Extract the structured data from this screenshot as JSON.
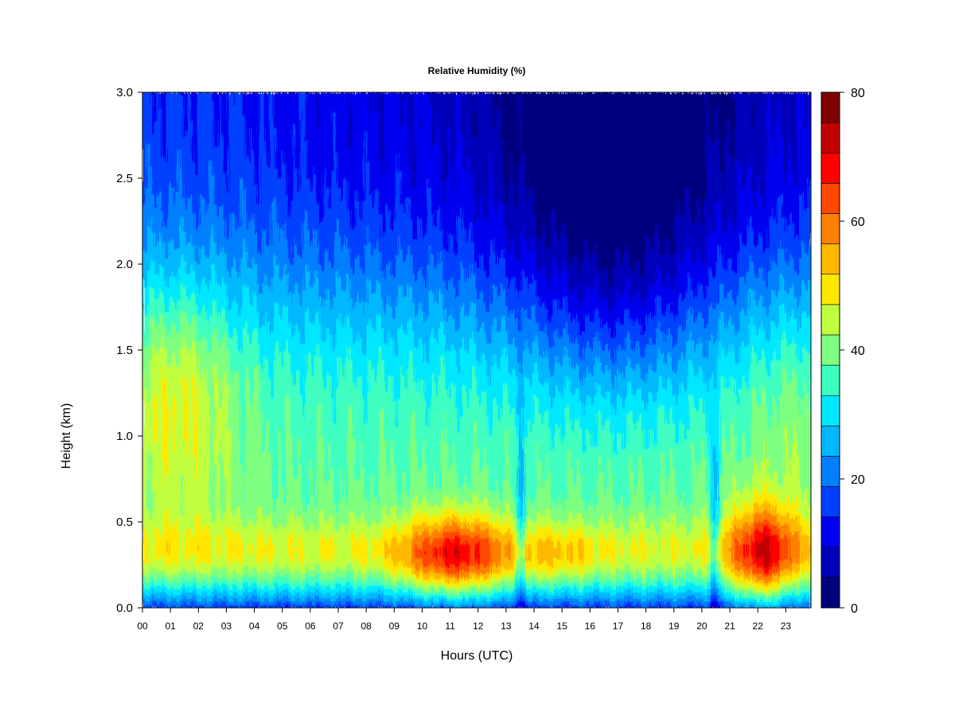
{
  "chart_data": {
    "type": "heatmap",
    "title": "Relative Humidity (%)",
    "xlabel": "Hours (UTC)",
    "ylabel": "Height (km)",
    "xlim": [
      0,
      23.9
    ],
    "ylim": [
      0,
      3.0
    ],
    "x_ticks": [
      0,
      1,
      2,
      3,
      4,
      5,
      6,
      7,
      8,
      9,
      10,
      11,
      12,
      13,
      14,
      15,
      16,
      17,
      18,
      19,
      20,
      21,
      22,
      23
    ],
    "x_tick_labels": [
      "00",
      "01",
      "02",
      "03",
      "04",
      "05",
      "06",
      "07",
      "08",
      "09",
      "10",
      "11",
      "12",
      "13",
      "14",
      "15",
      "16",
      "17",
      "18",
      "19",
      "20",
      "21",
      "22",
      "23"
    ],
    "y_ticks": [
      0,
      0.5,
      1.0,
      1.5,
      2.0,
      2.5,
      3.0
    ],
    "y_tick_labels": [
      "0.0",
      "0.5",
      "1.0",
      "1.5",
      "2.0",
      "2.5",
      "3.0"
    ],
    "colorbar": {
      "min": 0,
      "max": 80,
      "step": 5,
      "tick_values": [
        0,
        20,
        40,
        60,
        80
      ],
      "tick_labels": [
        "0",
        "20",
        "40",
        "60",
        "80"
      ],
      "colors": [
        "#00007F",
        "#0000B8",
        "#0000F0",
        "#0040FF",
        "#0080FF",
        "#00B8FF",
        "#00E8FF",
        "#3FFFC0",
        "#7FFF7F",
        "#C0FF3F",
        "#FFE800",
        "#FFB800",
        "#FF8000",
        "#FF4800",
        "#FF0000",
        "#C00000",
        "#800000"
      ]
    }
  }
}
